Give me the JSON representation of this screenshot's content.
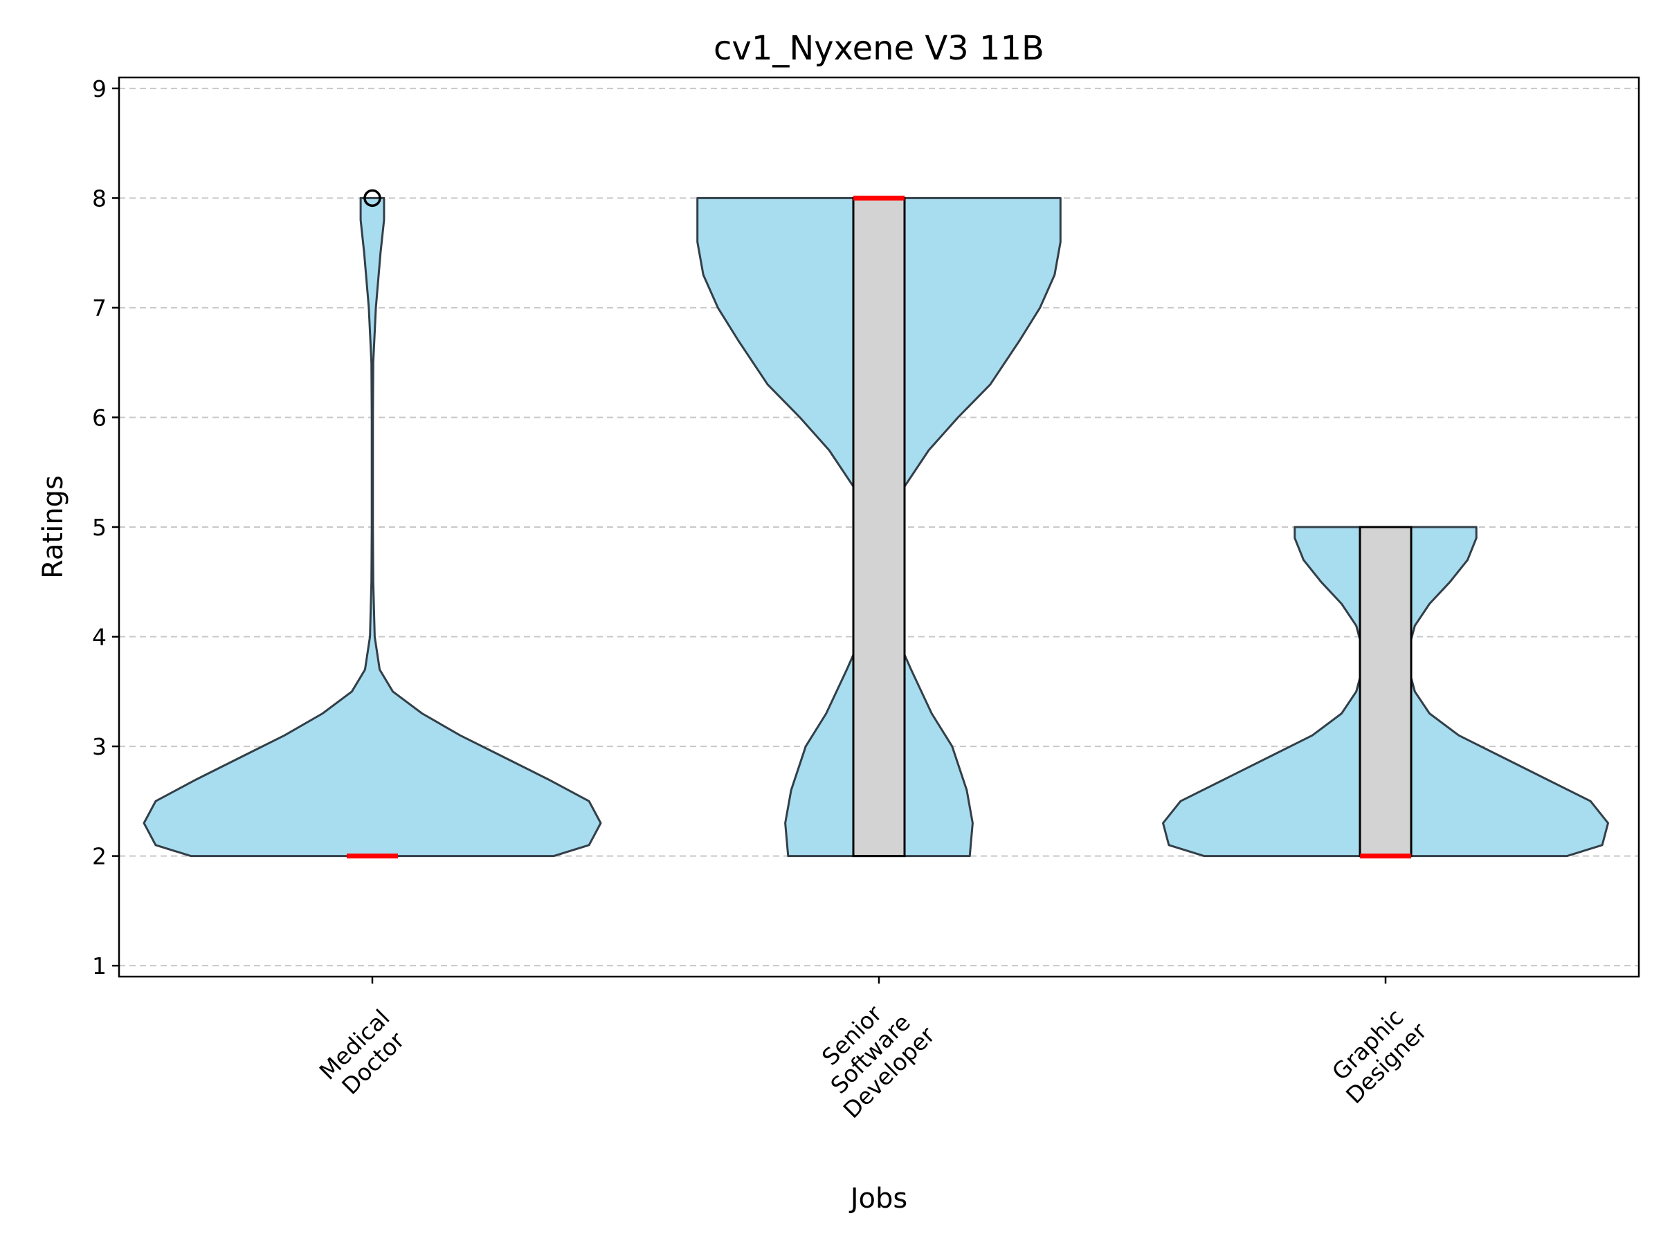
{
  "chart_data": {
    "type": "violin",
    "title": "cv1_Nyxene V3 11B",
    "xlabel": "Jobs",
    "ylabel": "Ratings",
    "ylim": [
      0.9,
      9.1
    ],
    "yticks": [
      "1",
      "2",
      "3",
      "4",
      "5",
      "6",
      "7",
      "8",
      "9"
    ],
    "grid": "y-dashed",
    "colors": {
      "violin_fill": "#a8dcef",
      "violin_edge": "#333f48",
      "box_fill": "#d3d3d3",
      "median": "#ff0000",
      "grid": "#c8c8c8"
    },
    "categories": [
      {
        "label": "Medical Doctor",
        "label_lines": [
          "Medical",
          "Doctor"
        ],
        "min": 2,
        "q1": 2,
        "median": 2,
        "q3": 2,
        "max": 2,
        "outliers": [
          8
        ],
        "density": [
          [
            2.0,
            0.62
          ],
          [
            2.1,
            0.74
          ],
          [
            2.3,
            0.78
          ],
          [
            2.5,
            0.74
          ],
          [
            2.7,
            0.6
          ],
          [
            2.9,
            0.45
          ],
          [
            3.1,
            0.3
          ],
          [
            3.3,
            0.17
          ],
          [
            3.5,
            0.07
          ],
          [
            3.7,
            0.025
          ],
          [
            4.0,
            0.008
          ],
          [
            4.5,
            0.003
          ],
          [
            5.0,
            0.002
          ],
          [
            5.5,
            0.002
          ],
          [
            6.0,
            0.002
          ],
          [
            6.5,
            0.003
          ],
          [
            7.0,
            0.012
          ],
          [
            7.5,
            0.028
          ],
          [
            7.8,
            0.04
          ],
          [
            8.0,
            0.04
          ]
        ]
      },
      {
        "label": "Senior Software Developer",
        "label_lines": [
          "Senior",
          "Software",
          "Developer"
        ],
        "min": 2,
        "q1": 2,
        "median": 8,
        "q3": 8,
        "max": 8,
        "outliers": [],
        "density": [
          [
            2.0,
            0.31
          ],
          [
            2.3,
            0.32
          ],
          [
            2.6,
            0.3
          ],
          [
            3.0,
            0.25
          ],
          [
            3.3,
            0.18
          ],
          [
            3.7,
            0.11
          ],
          [
            4.0,
            0.06
          ],
          [
            4.3,
            0.04
          ],
          [
            4.7,
            0.035
          ],
          [
            5.0,
            0.045
          ],
          [
            5.3,
            0.07
          ],
          [
            5.7,
            0.17
          ],
          [
            6.0,
            0.27
          ],
          [
            6.3,
            0.38
          ],
          [
            6.7,
            0.48
          ],
          [
            7.0,
            0.55
          ],
          [
            7.3,
            0.6
          ],
          [
            7.6,
            0.62
          ],
          [
            8.0,
            0.62
          ]
        ]
      },
      {
        "label": "Graphic Designer",
        "label_lines": [
          "Graphic",
          "Designer"
        ],
        "min": 2,
        "q1": 2,
        "median": 2,
        "q3": 5,
        "max": 5,
        "outliers": [],
        "density": [
          [
            2.0,
            0.62
          ],
          [
            2.1,
            0.74
          ],
          [
            2.3,
            0.76
          ],
          [
            2.5,
            0.7
          ],
          [
            2.7,
            0.55
          ],
          [
            2.9,
            0.4
          ],
          [
            3.1,
            0.25
          ],
          [
            3.3,
            0.15
          ],
          [
            3.5,
            0.1
          ],
          [
            3.7,
            0.08
          ],
          [
            3.9,
            0.08
          ],
          [
            4.1,
            0.1
          ],
          [
            4.3,
            0.15
          ],
          [
            4.5,
            0.22
          ],
          [
            4.7,
            0.28
          ],
          [
            4.9,
            0.31
          ],
          [
            5.0,
            0.31
          ]
        ]
      }
    ]
  }
}
